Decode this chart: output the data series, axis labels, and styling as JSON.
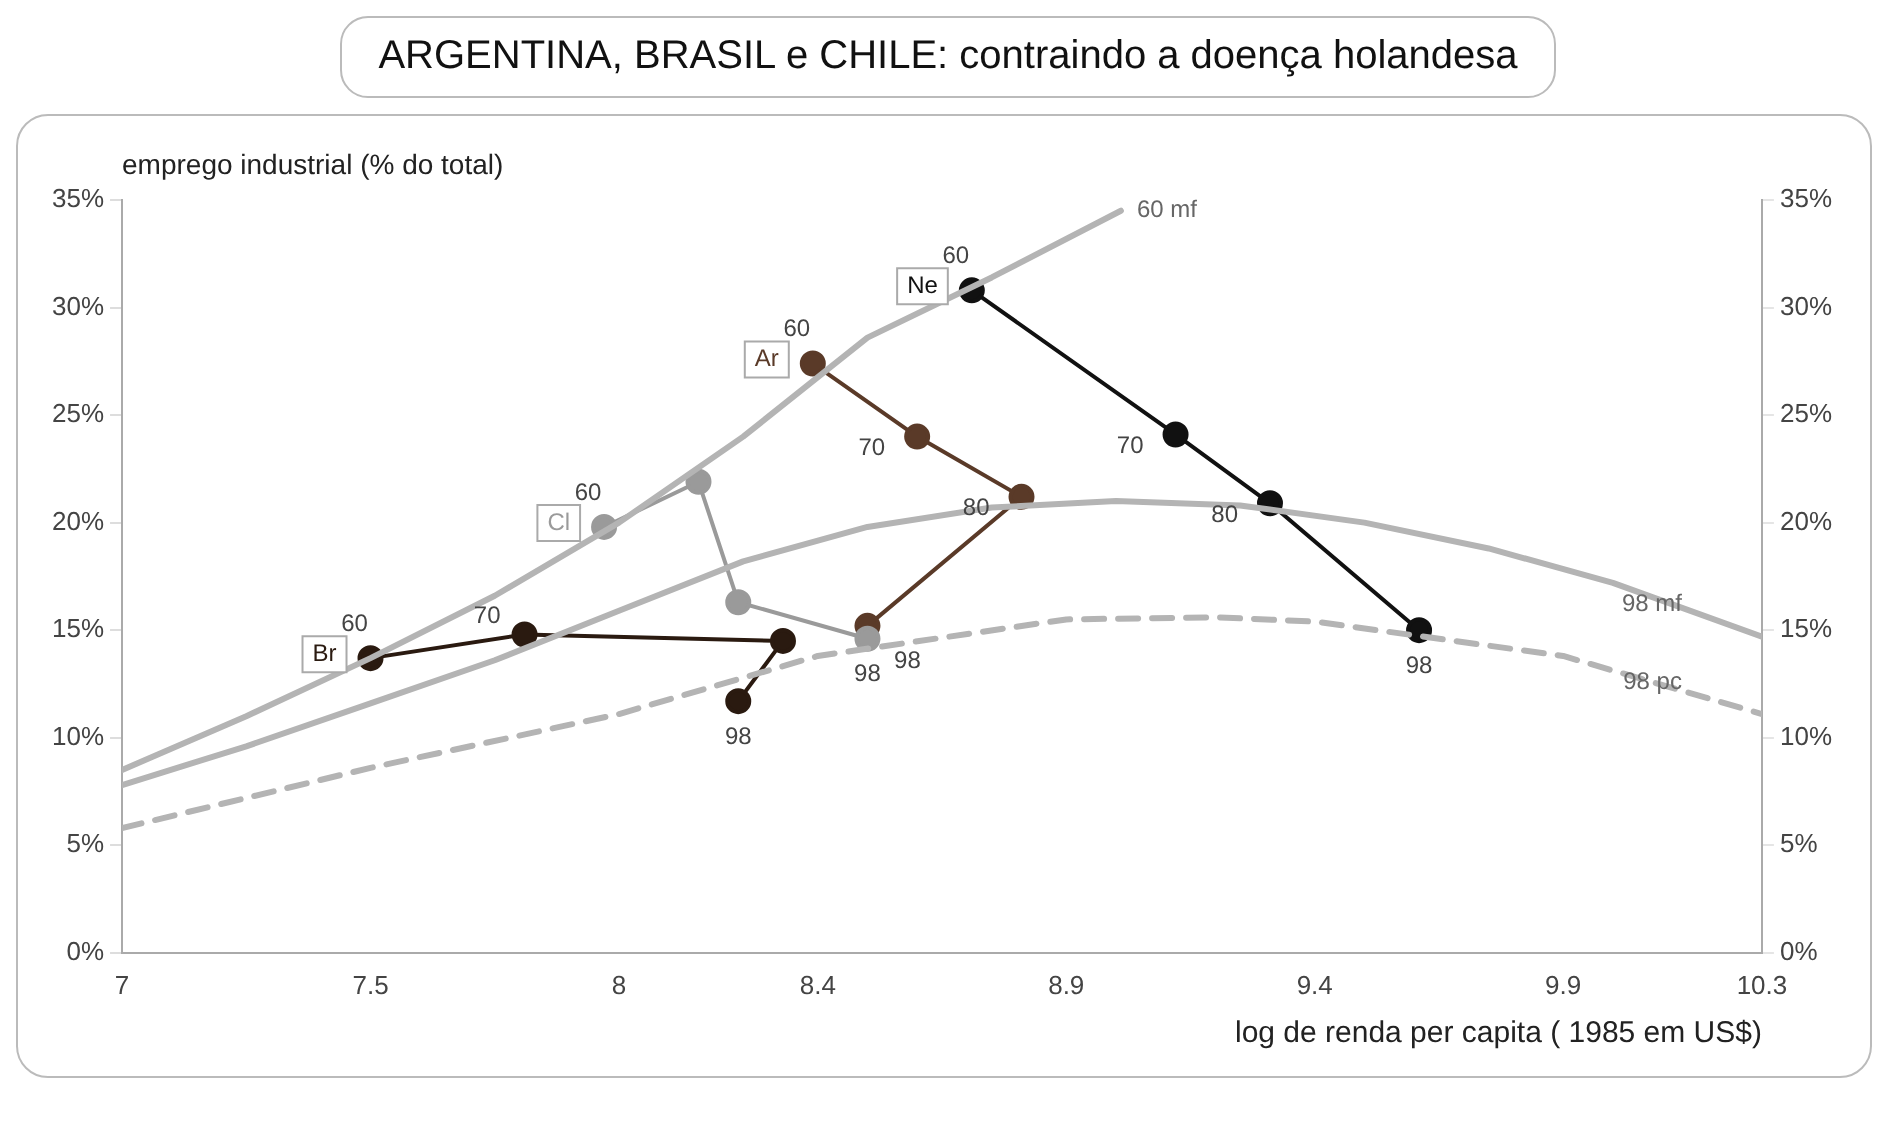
{
  "chart_data": {
    "type": "line",
    "title": "ARGENTINA, BRASIL e CHILE: contraindo a doença holandesa",
    "xlabel": "log de renda per capita ( 1985 em US$)",
    "ylabel": "emprego industrial (% do total)",
    "xlim": [
      7,
      10.3
    ],
    "xticks": [
      7,
      7.5,
      8,
      8.4,
      8.9,
      9.4,
      9.9,
      10.3
    ],
    "ylim": [
      0,
      35
    ],
    "yticks": [
      {
        "value": 0,
        "label": "0%"
      },
      {
        "value": 5,
        "label": "5%"
      },
      {
        "value": 10,
        "label": "10%"
      },
      {
        "value": 15,
        "label": "15%"
      },
      {
        "value": 20,
        "label": "20%"
      },
      {
        "value": 25,
        "label": "25%"
      },
      {
        "value": 30,
        "label": "30%"
      },
      {
        "value": 35,
        "label": "35%"
      }
    ],
    "y2lim": [
      0,
      35
    ],
    "y2ticks": [
      {
        "value": 0,
        "label": "0%"
      },
      {
        "value": 5,
        "label": "5%"
      },
      {
        "value": 10,
        "label": "10%"
      },
      {
        "value": 15,
        "label": "15%"
      },
      {
        "value": 20,
        "label": "20%"
      },
      {
        "value": 25,
        "label": "25%"
      },
      {
        "value": 30,
        "label": "30%"
      },
      {
        "value": 35,
        "label": "35%"
      }
    ],
    "grid": false,
    "legend": false,
    "series": [
      {
        "type": "line",
        "name": "60 mf",
        "marker": "none",
        "line_style": "solid",
        "color": "#b4b4b4",
        "x": [
          7,
          7.25,
          7.5,
          7.75,
          8,
          8.25,
          8.5,
          8.75,
          9.01
        ],
        "values": [
          8.5,
          11,
          13.7,
          16.6,
          20,
          24,
          28.6,
          31.4,
          34.5
        ]
      },
      {
        "type": "line",
        "name": "98 mf",
        "marker": "none",
        "line_style": "solid",
        "color": "#b4b4b4",
        "x": [
          7,
          7.25,
          7.5,
          7.75,
          8,
          8.25,
          8.5,
          8.75,
          9,
          9.25,
          9.5,
          9.75,
          10,
          10.3
        ],
        "values": [
          7.8,
          9.6,
          11.6,
          13.6,
          15.9,
          18.2,
          19.8,
          20.7,
          21,
          20.8,
          20,
          18.8,
          17.2,
          14.7
        ]
      },
      {
        "type": "line",
        "name": "98 pc",
        "marker": "none",
        "line_style": "dashed",
        "color": "#b4b4b4",
        "x": [
          7,
          7.5,
          8,
          8.4,
          8.9,
          9.2,
          9.4,
          9.9,
          10.3
        ],
        "values": [
          5.8,
          8.6,
          11.1,
          13.8,
          15.5,
          15.6,
          15.4,
          13.8,
          11.1
        ]
      },
      {
        "type": "line",
        "name": "Br",
        "marker": "circle",
        "line_style": "solid",
        "color": "#2a1a10",
        "x": [
          7.5,
          7.81,
          8.33,
          8.24
        ],
        "values": [
          13.7,
          14.8,
          14.5,
          11.7
        ]
      },
      {
        "type": "line",
        "name": "Cl",
        "marker": "circle",
        "line_style": "solid",
        "color": "#9a9a9a",
        "x": [
          7.97,
          8.16,
          8.24,
          8.5
        ],
        "values": [
          19.8,
          21.9,
          16.3,
          14.6
        ]
      },
      {
        "type": "line",
        "name": "Ar",
        "marker": "circle",
        "line_style": "solid",
        "color": "#5a3a28",
        "x": [
          8.39,
          8.6,
          8.81,
          8.5
        ],
        "values": [
          27.4,
          24,
          21.2,
          15.2
        ]
      },
      {
        "type": "line",
        "name": "Ne",
        "marker": "circle",
        "line_style": "solid",
        "color": "#111111",
        "x": [
          8.71,
          9.12,
          9.31,
          9.61
        ],
        "values": [
          30.8,
          24.1,
          20.9,
          15
        ]
      }
    ],
    "annotations": [
      {
        "text": "60",
        "x": 7.5,
        "y": 13.7
      },
      {
        "text": "70",
        "x": 7.81,
        "y": 14.8
      },
      {
        "text": "98",
        "x": 8.24,
        "y": 11.7
      },
      {
        "text": "60",
        "x": 7.97,
        "y": 19.8
      },
      {
        "text": "98",
        "x": 8.5,
        "y": 14.6
      },
      {
        "text": "60",
        "x": 8.39,
        "y": 27.4
      },
      {
        "text": "70",
        "x": 8.6,
        "y": 24
      },
      {
        "text": "80",
        "x": 8.81,
        "y": 21.2
      },
      {
        "text": "98",
        "x": 8.5,
        "y": 15.2
      },
      {
        "text": "60",
        "x": 8.71,
        "y": 30.8
      },
      {
        "text": "70",
        "x": 9.12,
        "y": 24.1
      },
      {
        "text": "80",
        "x": 9.31,
        "y": 20.9
      },
      {
        "text": "98",
        "x": 9.61,
        "y": 15
      }
    ]
  }
}
